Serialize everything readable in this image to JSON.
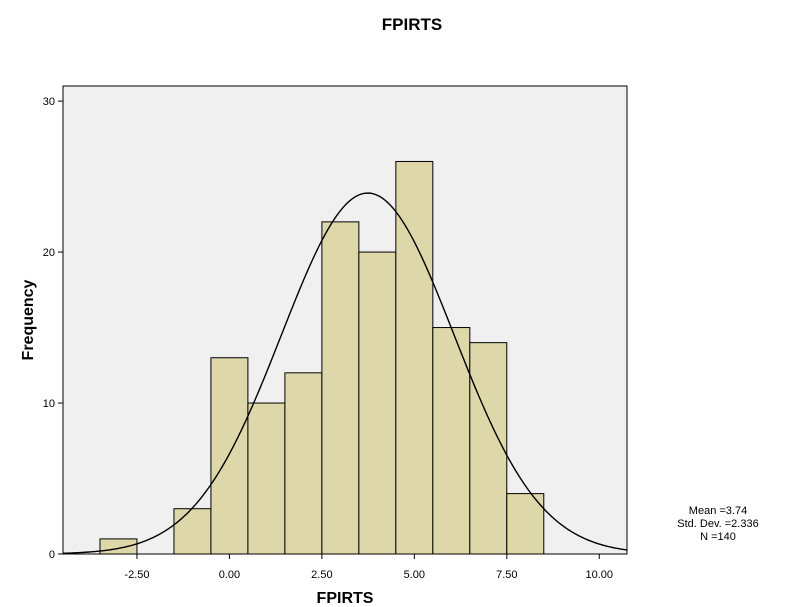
{
  "colors": {
    "plot_background": "#f0f0f0",
    "bar_fill": "#ddd7a9",
    "bar_stroke": "#000000",
    "curve": "#000000"
  },
  "chart_data": {
    "type": "bar",
    "title": "FPIRTS",
    "xlabel": "FPIRTS",
    "ylabel": "Frequency",
    "xlim": [
      -4.5,
      10.75
    ],
    "ylim": [
      0,
      31
    ],
    "x_ticks": [
      -2.5,
      0,
      2.5,
      5,
      7.5,
      10
    ],
    "x_tick_labels": [
      "-2.50",
      "0.00",
      "2.50",
      "5.00",
      "7.50",
      "10.00"
    ],
    "y_ticks": [
      0,
      10,
      20,
      30
    ],
    "y_tick_labels": [
      "0",
      "10",
      "20",
      "30"
    ],
    "bin_width": 1,
    "bins": [
      {
        "start": -3.5,
        "end": -2.5,
        "count": 1
      },
      {
        "start": -2.5,
        "end": -1.5,
        "count": 0
      },
      {
        "start": -1.5,
        "end": -0.5,
        "count": 3
      },
      {
        "start": -0.5,
        "end": 0.5,
        "count": 13
      },
      {
        "start": 0.5,
        "end": 1.5,
        "count": 10
      },
      {
        "start": 1.5,
        "end": 2.5,
        "count": 12
      },
      {
        "start": 2.5,
        "end": 3.5,
        "count": 22
      },
      {
        "start": 3.5,
        "end": 4.5,
        "count": 20
      },
      {
        "start": 4.5,
        "end": 5.5,
        "count": 26
      },
      {
        "start": 5.5,
        "end": 6.5,
        "count": 15
      },
      {
        "start": 6.5,
        "end": 7.5,
        "count": 14
      },
      {
        "start": 7.5,
        "end": 8.5,
        "count": 4
      }
    ],
    "normal_curve": {
      "mean": 3.74,
      "std_dev": 2.336,
      "n": 140
    },
    "legend_position": "bottom-right"
  },
  "stats": {
    "mean_label": "Mean =3.74",
    "std_label": "Std. Dev. =2.336",
    "n_label": "N =140"
  }
}
